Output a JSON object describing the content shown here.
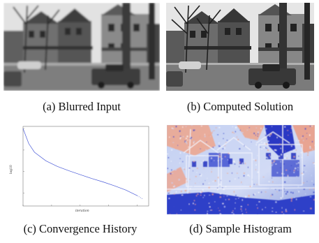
{
  "figure": {
    "panels": [
      {
        "id": "a",
        "caption": "(a)  Blurred Input",
        "content": "street-photo-blurred"
      },
      {
        "id": "b",
        "caption": "(b)  Computed Solution",
        "content": "street-photo-sharp"
      },
      {
        "id": "c",
        "caption": "(c)  Convergence History",
        "content": "convergence-plot"
      },
      {
        "id": "d",
        "caption": "(d)  Sample Histogram",
        "content": "heatmap"
      }
    ]
  },
  "chart_data": {
    "type": "line",
    "title": "",
    "xlabel": "iteration",
    "ylabel": "log10",
    "x": [
      0,
      10,
      20,
      40,
      60,
      80,
      100,
      120,
      140,
      160,
      180,
      200,
      210
    ],
    "series": [
      {
        "values": [
          0.0,
          -0.35,
          -0.55,
          -0.75,
          -0.88,
          -0.98,
          -1.07,
          -1.16,
          -1.24,
          -1.33,
          -1.43,
          -1.56,
          -1.64
        ]
      }
    ],
    "ylim": [
      -1.8,
      0.05
    ],
    "xlim": [
      0,
      220
    ],
    "grid": false,
    "legend": "none",
    "colors": {
      "line": "#4a5bd8",
      "tail": "#9aa3e0"
    }
  },
  "colors": {
    "sky": "#e6e6e6",
    "building_dark": "#3a3a3a",
    "building_mid": "#7d7d7d",
    "road": "#8a8a8a",
    "heat_blue": "#3344c8",
    "heat_light": "#c8d4f4",
    "heat_salmon": "#f0a487"
  }
}
